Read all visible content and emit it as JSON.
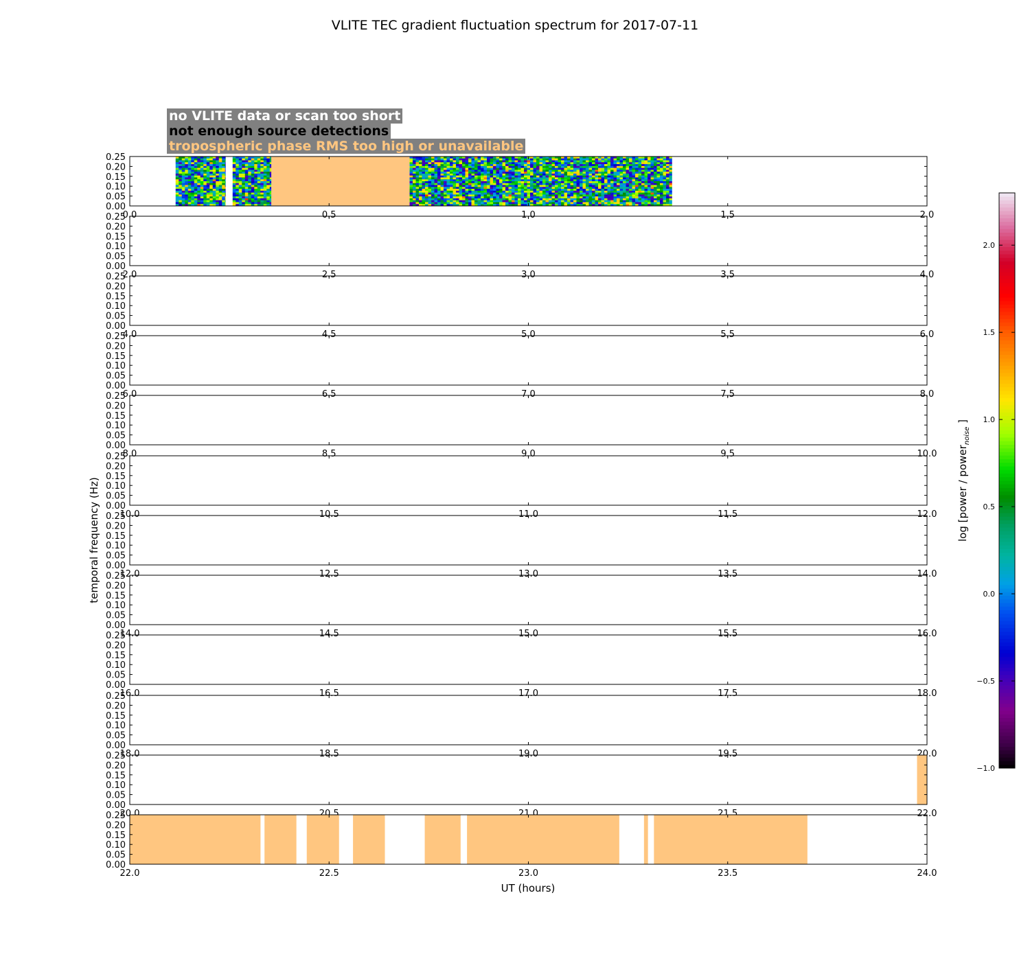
{
  "chart_data": {
    "type": "heatmap",
    "title": "VLITE TEC gradient fluctuation spectrum for 2017-07-11",
    "xlabel": "UT (hours)",
    "ylabel": "temporal frequency (Hz)",
    "ylim": [
      0,
      0.25
    ],
    "y_ticks": [
      "0.00",
      "0.05",
      "0.10",
      "0.15",
      "0.20",
      "0.25"
    ],
    "legend": [
      {
        "label": "no VLITE data or scan too short",
        "color": "#ffffff"
      },
      {
        "label": "not enough source detections",
        "color": "#000000"
      },
      {
        "label": "tropospheric phase RMS too high or unavailable",
        "color": "#ffc680"
      }
    ],
    "colorbar": {
      "label_main": "log [power / power",
      "label_sub": "noise",
      "label_end": "]",
      "range": [
        -1.0,
        2.3
      ],
      "ticks": [
        "−1.0",
        "−0.5",
        "0.0",
        "0.5",
        "1.0",
        "1.5",
        "2.0"
      ],
      "tick_values": [
        -1.0,
        -0.5,
        0.0,
        0.5,
        1.0,
        1.5,
        2.0
      ]
    },
    "panels": [
      {
        "xlim": [
          0,
          2
        ],
        "x_ticks": [
          "0.0",
          "0.5",
          "1.0",
          "1.5",
          "2.0"
        ],
        "spectrum_segments": [
          [
            0.115,
            0.24
          ],
          [
            0.258,
            0.355
          ],
          [
            0.702,
            1.36
          ]
        ],
        "flag_segments": [
          [
            0.355,
            0.702
          ]
        ]
      },
      {
        "xlim": [
          2,
          4
        ],
        "x_ticks": [
          "2.0",
          "2.5",
          "3.0",
          "3.5",
          "4.0"
        ],
        "spectrum_segments": [],
        "flag_segments": []
      },
      {
        "xlim": [
          4,
          6
        ],
        "x_ticks": [
          "4.0",
          "4.5",
          "5.0",
          "5.5",
          "6.0"
        ],
        "spectrum_segments": [],
        "flag_segments": []
      },
      {
        "xlim": [
          6,
          8
        ],
        "x_ticks": [
          "6.0",
          "6.5",
          "7.0",
          "7.5",
          "8.0"
        ],
        "spectrum_segments": [],
        "flag_segments": []
      },
      {
        "xlim": [
          8,
          10
        ],
        "x_ticks": [
          "8.0",
          "8.5",
          "9.0",
          "9.5",
          "10.0"
        ],
        "spectrum_segments": [],
        "flag_segments": []
      },
      {
        "xlim": [
          10,
          12
        ],
        "x_ticks": [
          "10.0",
          "10.5",
          "11.0",
          "11.5",
          "12.0"
        ],
        "spectrum_segments": [],
        "flag_segments": []
      },
      {
        "xlim": [
          12,
          14
        ],
        "x_ticks": [
          "12.0",
          "12.5",
          "13.0",
          "13.5",
          "14.0"
        ],
        "spectrum_segments": [],
        "flag_segments": []
      },
      {
        "xlim": [
          14,
          16
        ],
        "x_ticks": [
          "14.0",
          "14.5",
          "15.0",
          "15.5",
          "16.0"
        ],
        "spectrum_segments": [],
        "flag_segments": []
      },
      {
        "xlim": [
          16,
          18
        ],
        "x_ticks": [
          "16.0",
          "16.5",
          "17.0",
          "17.5",
          "18.0"
        ],
        "spectrum_segments": [],
        "flag_segments": []
      },
      {
        "xlim": [
          18,
          20
        ],
        "x_ticks": [
          "18.0",
          "18.5",
          "19.0",
          "19.5",
          "20.0"
        ],
        "spectrum_segments": [],
        "flag_segments": []
      },
      {
        "xlim": [
          20,
          22
        ],
        "x_ticks": [
          "20.0",
          "20.5",
          "21.0",
          "21.5",
          "22.0"
        ],
        "spectrum_segments": [],
        "flag_segments": [
          [
            21.975,
            22.0
          ]
        ]
      },
      {
        "xlim": [
          22,
          24
        ],
        "x_ticks": [
          "22.0",
          "22.5",
          "23.0",
          "23.5",
          "24.0"
        ],
        "spectrum_segments": [],
        "flag_segments": [
          [
            22.0,
            22.328
          ],
          [
            22.338,
            22.418
          ],
          [
            22.444,
            22.525
          ],
          [
            22.56,
            22.64
          ],
          [
            22.74,
            22.83
          ],
          [
            22.846,
            23.228
          ],
          [
            23.29,
            23.3
          ],
          [
            23.315,
            23.7
          ]
        ]
      }
    ]
  }
}
